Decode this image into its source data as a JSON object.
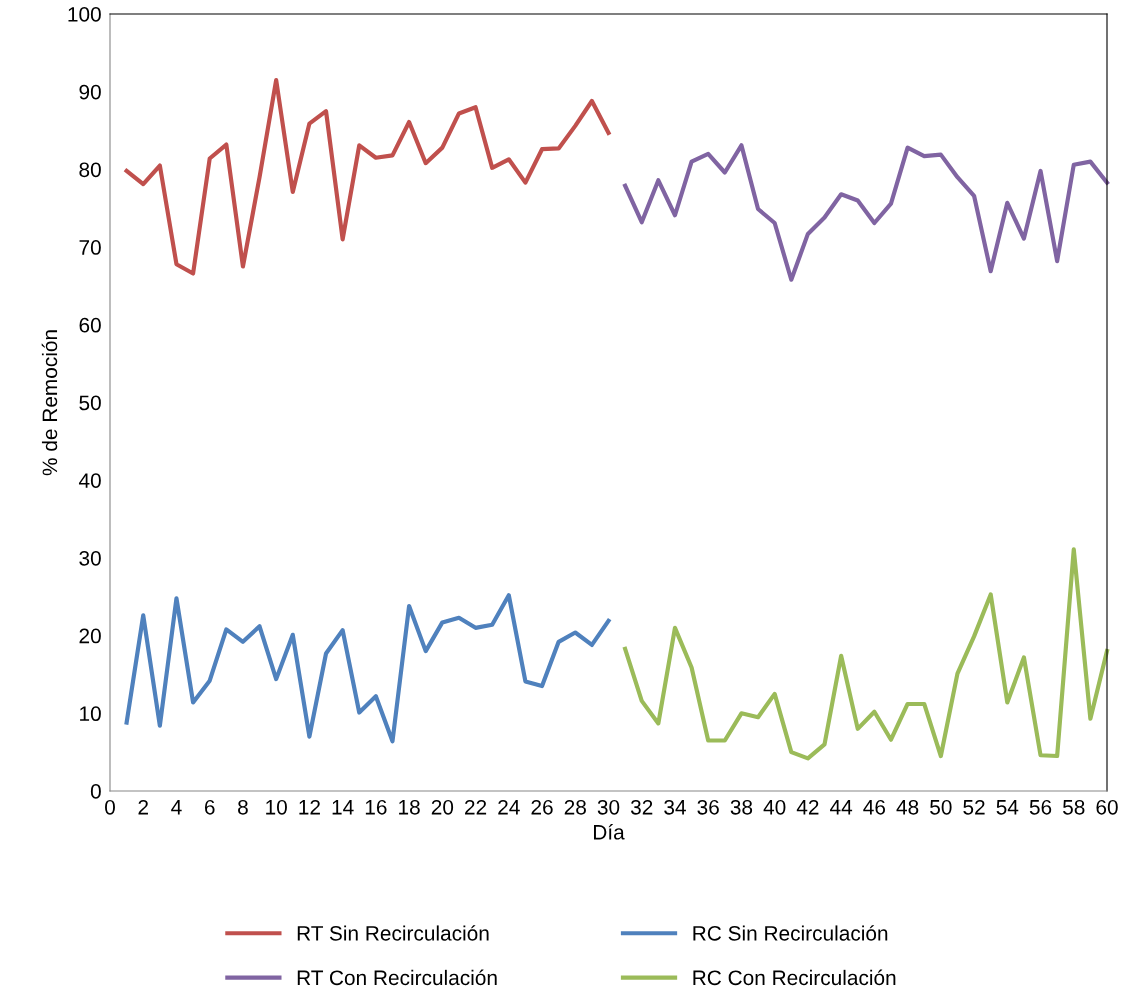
{
  "chart_data": {
    "type": "line",
    "xlabel": "Día",
    "ylabel": "% de Remoción",
    "series": [
      {
        "name": "RT Sin Recirculación",
        "color": "#c0504d",
        "x": [
          1,
          2,
          3,
          4,
          5,
          6,
          7,
          8,
          9,
          10,
          11,
          12,
          13,
          14,
          15,
          16,
          17,
          18,
          19,
          20,
          21,
          22,
          23,
          24,
          25,
          26,
          27,
          28,
          29,
          30
        ],
        "values": [
          79.8,
          78.1,
          80.5,
          67.8,
          66.6,
          81.4,
          83.2,
          67.5,
          79,
          91.5,
          77.1,
          85.9,
          87.5,
          71,
          83.1,
          81.5,
          81.8,
          86.1,
          80.8,
          82.8,
          87.2,
          88,
          80.2,
          81.3,
          78.3,
          82.6,
          82.7,
          85.6,
          88.8,
          84.7
        ]
      },
      {
        "name": "RT Con Recirculación",
        "color": "#8064a2",
        "x": [
          31,
          32,
          33,
          34,
          35,
          36,
          37,
          38,
          39,
          40,
          41,
          42,
          43,
          44,
          45,
          46,
          47,
          48,
          49,
          50,
          51,
          52,
          53,
          54,
          55,
          56,
          57,
          58,
          59,
          60
        ],
        "values": [
          77.9,
          73.2,
          78.6,
          74.1,
          81,
          82,
          79.6,
          83.1,
          74.9,
          73.1,
          65.8,
          71.7,
          73.8,
          76.8,
          76,
          73.1,
          75.6,
          82.8,
          81.7,
          81.9,
          79,
          76.6,
          66.9,
          75.7,
          71.1,
          79.8,
          68.2,
          80.6,
          81,
          78.3
        ]
      },
      {
        "name": "RC Sin Recirculación",
        "color": "#4f81bd",
        "x": [
          1,
          2,
          3,
          4,
          5,
          6,
          7,
          8,
          9,
          10,
          11,
          12,
          13,
          14,
          15,
          16,
          17,
          18,
          19,
          20,
          21,
          22,
          23,
          24,
          25,
          26,
          27,
          28,
          29,
          30
        ],
        "values": [
          8.8,
          22.6,
          8.4,
          24.8,
          11.4,
          14.2,
          20.8,
          19.2,
          21.2,
          14.4,
          20.1,
          7,
          17.7,
          20.7,
          10.1,
          12.2,
          6.4,
          23.8,
          18,
          21.7,
          22.3,
          21,
          21.4,
          25.2,
          14.1,
          13.5,
          19.2,
          20.4,
          18.8,
          21.9
        ]
      },
      {
        "name": "RC Con Recirculación",
        "color": "#9bbb59",
        "x": [
          31,
          32,
          33,
          34,
          35,
          36,
          37,
          38,
          39,
          40,
          41,
          42,
          43,
          44,
          45,
          46,
          47,
          48,
          49,
          50,
          51,
          52,
          53,
          54,
          55,
          56,
          57,
          58,
          59,
          60
        ],
        "values": [
          18.3,
          11.6,
          8.7,
          21,
          15.9,
          6.5,
          6.5,
          10,
          9.5,
          12.5,
          5,
          4.2,
          6,
          17.4,
          8,
          10.2,
          6.6,
          11.2,
          11.2,
          4.5,
          15.1,
          19.9,
          25.3,
          11.4,
          17.2,
          4.6,
          4.5,
          31.1,
          9.3,
          18
        ]
      }
    ],
    "xlim": [
      0,
      60
    ],
    "xticks": [
      0,
      2,
      4,
      6,
      8,
      10,
      12,
      14,
      16,
      18,
      20,
      22,
      24,
      26,
      28,
      30,
      32,
      34,
      36,
      38,
      40,
      42,
      44,
      46,
      48,
      50,
      52,
      54,
      56,
      58,
      60
    ],
    "ylim": [
      0,
      100
    ],
    "yticks": [
      0,
      10,
      20,
      30,
      40,
      50,
      60,
      70,
      80,
      90,
      100
    ],
    "grid": false,
    "legend": "bottom",
    "marker": "none",
    "line_style": "solid"
  }
}
